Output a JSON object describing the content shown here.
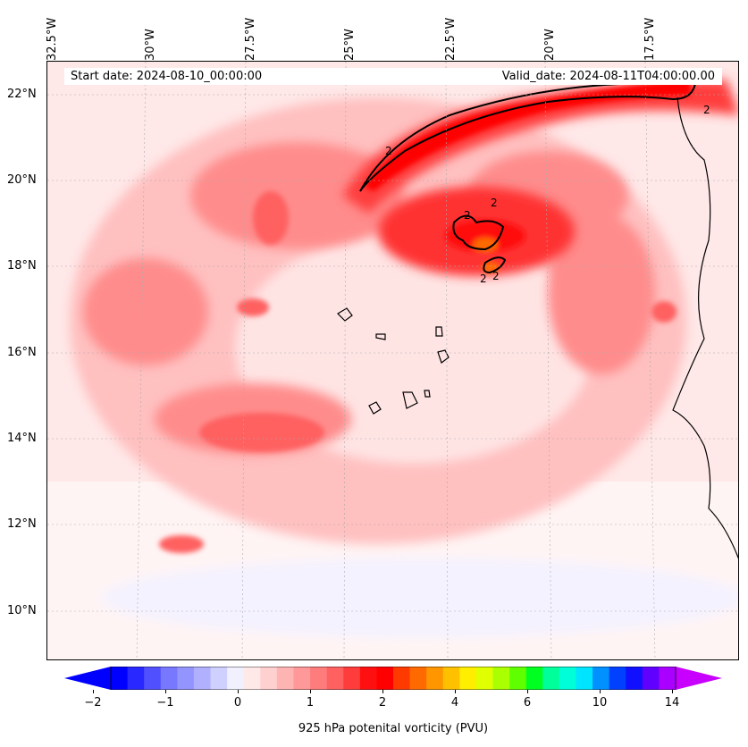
{
  "map": {
    "start_date": "Start date: 2024-08-10_00:00:00",
    "valid_date": "Valid_date: 2024-08-11T04:00:00.00",
    "lon_labels": [
      "32.5°W",
      "30°W",
      "27.5°W",
      "25°W",
      "22.5°W",
      "20°W",
      "17.5°W"
    ],
    "lat_labels": [
      "22°N",
      "20°N",
      "18°N",
      "16°N",
      "14°N",
      "12°N",
      "10°N"
    ],
    "contour_labels": [
      "2",
      "2",
      "2",
      "2",
      "2",
      "2"
    ],
    "colorbar_label": "925 hPa potenital vorticity (PVU)",
    "colorbar_ticks": [
      "−2",
      "−1",
      "0",
      "1",
      "2",
      "4",
      "6",
      "10",
      "14"
    ]
  },
  "colors": {
    "colorbar": [
      "#0000ff",
      "#2828ff",
      "#5050ff",
      "#7878ff",
      "#9494ff",
      "#b0b0ff",
      "#d0d0ff",
      "#f0f0ff",
      "#ffe8e8",
      "#ffd0d0",
      "#ffb4b4",
      "#ff9898",
      "#ff7c7c",
      "#ff6060",
      "#ff3c3c",
      "#ff1010",
      "#ff0000",
      "#ff3a00",
      "#ff6a00",
      "#ff9600",
      "#ffc000",
      "#ffee00",
      "#e0ff00",
      "#aaff00",
      "#60ff00",
      "#00ff20",
      "#00ff9a",
      "#00ffd8",
      "#00e4ff",
      "#0090ff",
      "#0040ff",
      "#1010ff",
      "#6000ff",
      "#aa00ff"
    ],
    "arrow_left": "#0000ff",
    "arrow_right": "#c800ff"
  }
}
